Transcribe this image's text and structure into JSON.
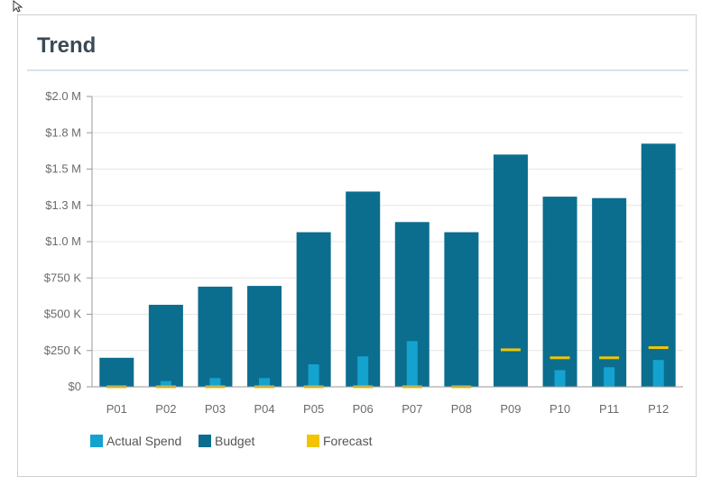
{
  "card": {
    "title": "Trend"
  },
  "chart_data": {
    "type": "bar",
    "categories": [
      "P01",
      "P02",
      "P03",
      "P04",
      "P05",
      "P06",
      "P07",
      "P08",
      "P09",
      "P10",
      "P11",
      "P12"
    ],
    "series": [
      {
        "name": "Budget",
        "values": [
          200000,
          565000,
          690000,
          695000,
          1065000,
          1345000,
          1135000,
          1065000,
          1600000,
          1310000,
          1300000,
          1675000
        ]
      },
      {
        "name": "Actual Spend",
        "values": [
          0,
          40000,
          60000,
          60000,
          155000,
          210000,
          315000,
          0,
          0,
          115000,
          135000,
          185000
        ]
      },
      {
        "name": "Forecast",
        "values": [
          0,
          0,
          0,
          0,
          0,
          0,
          0,
          0,
          255000,
          200000,
          200000,
          270000
        ]
      }
    ],
    "ylim": [
      0,
      2000000
    ],
    "ytick_values": [
      0,
      250000,
      500000,
      750000,
      1000000,
      1250000,
      1500000,
      1750000,
      2000000
    ],
    "ytick_labels": [
      "$0",
      "$250 K",
      "$500 K",
      "$750 K",
      "$1.0 M",
      "$1.3 M",
      "$1.5 M",
      "$1.8 M",
      "$2.0 M"
    ],
    "grid": true,
    "legend_placement": "bottom",
    "colors": {
      "budget": "#0b6e8f",
      "actual": "#14a3cf",
      "forecast": "#f2c500",
      "grid": "#e6e6e6",
      "axis": "#9a9a9a"
    }
  },
  "legend": {
    "items": [
      {
        "label": "Actual Spend",
        "color": "#14a3cf"
      },
      {
        "label": "Budget",
        "color": "#0b6e8f"
      },
      {
        "label": "Forecast",
        "color": "#f2c500"
      }
    ]
  }
}
